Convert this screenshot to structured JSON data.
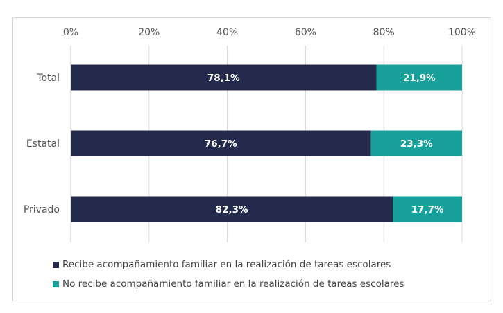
{
  "chart_data": {
    "type": "bar",
    "orientation": "horizontal",
    "stacked": true,
    "categories": [
      "Total",
      "Estatal",
      "Privado"
    ],
    "series": [
      {
        "name": "Recibe acompañamiento familiar en la realización de tareas escolares",
        "values": [
          78.1,
          76.7,
          82.3
        ],
        "labels": [
          "78,1%",
          "76,7%",
          "82,3%"
        ],
        "color": "#232a4c"
      },
      {
        "name": "No recibe acompañamiento familiar en la realización de tareas escolares",
        "values": [
          21.9,
          23.3,
          17.7
        ],
        "labels": [
          "21,9%",
          "23,3%",
          "17,7%"
        ],
        "color": "#17a19a"
      }
    ],
    "xticks": [
      0,
      20,
      40,
      60,
      80,
      100
    ],
    "xtick_labels": [
      "0%",
      "20%",
      "40%",
      "60%",
      "80%",
      "100%"
    ],
    "xlim": [
      0,
      100
    ],
    "axis_position": "top",
    "grid": true,
    "legend_placement": "bottom-left"
  }
}
